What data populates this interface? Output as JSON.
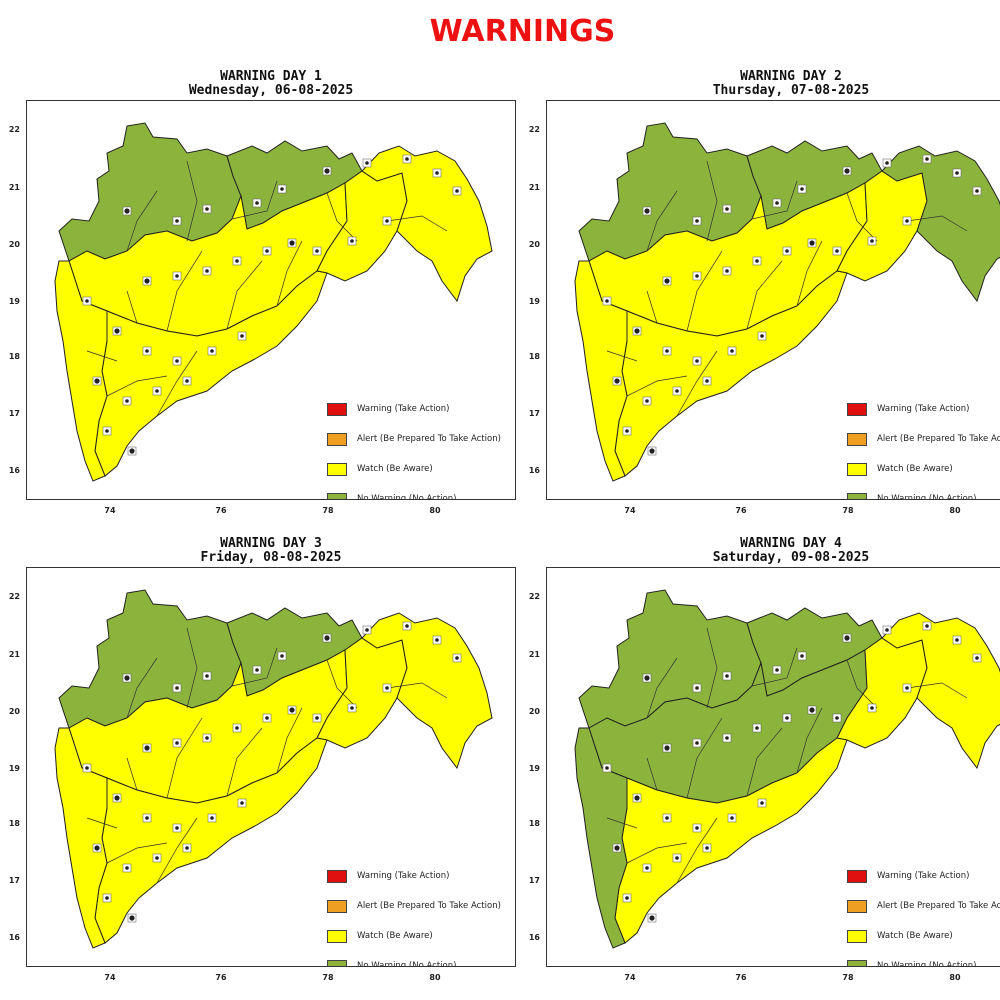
{
  "title": "WARNINGS",
  "colors": {
    "red": "#e01010",
    "orange": "#f0a020",
    "yellow": "#ffff00",
    "green": "#8cb43c"
  },
  "legend": [
    {
      "color": "red",
      "label": "Warning (Take Action)"
    },
    {
      "color": "orange",
      "label": "Alert (Be Prepared To Take Action)"
    },
    {
      "color": "yellow",
      "label": "Watch (Be Aware)"
    },
    {
      "color": "green",
      "label": "No Warning (No Action)"
    }
  ],
  "panels": [
    {
      "title": "WARNING DAY 1",
      "date": "Wednesday, 06-08-2025",
      "lat_ticks": [
        "22",
        "21",
        "20",
        "19",
        "18",
        "17",
        "16"
      ],
      "lon_ticks": [
        "74",
        "76",
        "78",
        "80"
      ],
      "regions": {
        "northwest": "green",
        "north": "green",
        "center": "yellow",
        "south": "yellow",
        "coast": "yellow",
        "east": "yellow",
        "far_east": "yellow"
      }
    },
    {
      "title": "WARNING DAY 2",
      "date": "Thursday, 07-08-2025",
      "lat_ticks": [
        "22",
        "21",
        "20",
        "19",
        "18",
        "17",
        "16"
      ],
      "lon_ticks": [
        "74",
        "76",
        "78",
        "80"
      ],
      "regions": {
        "northwest": "green",
        "north": "green",
        "center": "yellow",
        "south": "yellow",
        "coast": "yellow",
        "east": "yellow",
        "far_east": "green"
      }
    },
    {
      "title": "WARNING DAY 3",
      "date": "Friday, 08-08-2025",
      "lat_ticks": [
        "22",
        "21",
        "20",
        "19",
        "18",
        "17",
        "16"
      ],
      "lon_ticks": [
        "74",
        "76",
        "78",
        "80"
      ],
      "regions": {
        "northwest": "green",
        "north": "green",
        "center": "yellow",
        "south": "yellow",
        "coast": "yellow",
        "east": "yellow",
        "far_east": "yellow"
      }
    },
    {
      "title": "WARNING DAY 4",
      "date": "Saturday, 09-08-2025",
      "lat_ticks": [
        "22",
        "21",
        "20",
        "19",
        "18",
        "17",
        "16"
      ],
      "lon_ticks": [
        "74",
        "76",
        "78",
        "80"
      ],
      "regions": {
        "northwest": "green",
        "north": "green",
        "center": "green",
        "south": "yellow",
        "coast": "green",
        "east": "yellow",
        "far_east": "yellow"
      }
    }
  ]
}
